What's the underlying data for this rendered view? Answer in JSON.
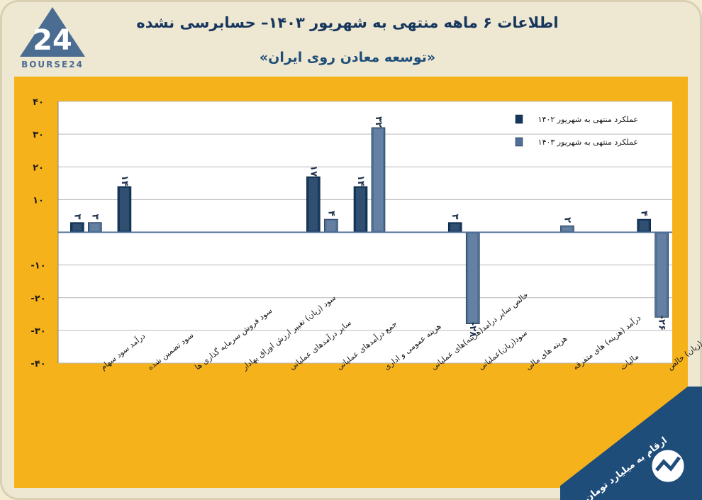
{
  "header": {
    "title": "اطلاعات ۶ ماهه منتهی به شهریور ۱۴۰۳– حسابرسی نشده",
    "subtitle": "«توسعه معادن روی ایران»",
    "logo_text": "BOURSE24",
    "logo_number": "24"
  },
  "note": "ارقام به میلیارد تومان",
  "colors": {
    "background": "#f6b21a",
    "plot_bg": "#ffffff",
    "series_1402": "#14375e",
    "series_1403": "#4f6f96",
    "title": "#17365d"
  },
  "chart_data": {
    "type": "bar",
    "categories": [
      "درآمد سود سهام",
      "سود تضمین شده",
      "سود فروش سرمایه گذاری ها",
      "سود (زیان) تغییر ارزش اوراق بهادار",
      "سایر درآمدهای عملیاتی",
      "جمع درآمدهای عملیاتی",
      "هزینه عمومی و اداری",
      "خالص سایر درامد(هزینه)های عملیاتی",
      "سود(زیان)عملیاتی",
      "هزینه های مالی",
      "درآمد (هزینه) های متفرقه",
      "مالیات",
      "سود(زیان) خالص"
    ],
    "series": [
      {
        "name": "عملکرد منتهی به شهریور ۱۴۰۲",
        "values": [
          3,
          14,
          0,
          0,
          0,
          17,
          14,
          0,
          3,
          0,
          0,
          0,
          4
        ]
      },
      {
        "name": "عملکرد منتهی به شهریور ۱۴۰۳",
        "values": [
          3,
          0,
          0,
          0,
          0,
          4,
          32,
          0,
          -28,
          0,
          2,
          0,
          -26
        ]
      }
    ],
    "data_labels": [
      [
        "۳",
        "۱۴",
        null,
        null,
        null,
        "۱۷",
        "۱۴",
        null,
        "۳",
        null,
        null,
        null,
        "۴"
      ],
      [
        "۳",
        null,
        null,
        null,
        null,
        "۴",
        "۳۲",
        null,
        "-۲۸",
        null,
        "۲",
        null,
        "-۲۶"
      ]
    ],
    "yticks": [
      {
        "value": 40,
        "label": "۴۰"
      },
      {
        "value": 30,
        "label": "۳۰"
      },
      {
        "value": 20,
        "label": "۲۰"
      },
      {
        "value": 10,
        "label": "۱۰"
      },
      {
        "value": -10,
        "label": "-۱۰"
      },
      {
        "value": -20,
        "label": "-۲۰"
      },
      {
        "value": -30,
        "label": "-۳۰"
      },
      {
        "value": -40,
        "label": "-۴۰"
      }
    ],
    "ylim": [
      -40,
      40
    ],
    "grid": true,
    "legend_position": "top-right",
    "xlabel": "",
    "ylabel": ""
  }
}
